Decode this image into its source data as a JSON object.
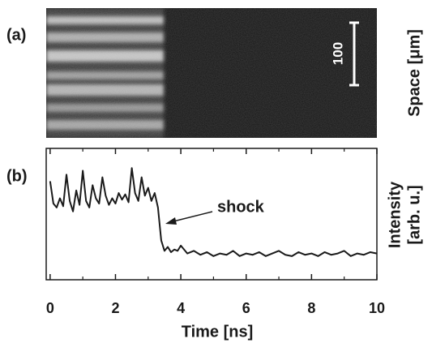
{
  "chart_data": [
    {
      "type": "image",
      "panel_label": "(a)",
      "y_label": "Space [μm]",
      "scale_bar": 100
    },
    {
      "type": "line",
      "panel_label": "(b)",
      "x_label": "Time [ns]",
      "y_label": [
        "Intensity",
        "[arb. u.]"
      ],
      "annotation": "shock",
      "color": "#1a1a1a",
      "xlim": [
        -0.12,
        10
      ],
      "xticks": [
        0,
        2,
        4,
        6,
        8,
        10
      ],
      "ylim": [
        0,
        1
      ],
      "x": [
        0,
        0.1,
        0.2,
        0.3,
        0.4,
        0.5,
        0.6,
        0.7,
        0.8,
        0.9,
        1.0,
        1.1,
        1.2,
        1.3,
        1.4,
        1.5,
        1.6,
        1.7,
        1.8,
        1.9,
        2.0,
        2.1,
        2.2,
        2.3,
        2.4,
        2.5,
        2.6,
        2.7,
        2.8,
        2.9,
        3.0,
        3.1,
        3.2,
        3.3,
        3.4,
        3.5,
        3.6,
        3.7,
        3.8,
        3.9,
        4.0,
        4.2,
        4.4,
        4.6,
        4.8,
        5.0,
        5.2,
        5.4,
        5.6,
        5.8,
        6.0,
        6.2,
        6.4,
        6.6,
        6.8,
        7.0,
        7.2,
        7.4,
        7.6,
        7.8,
        8.0,
        8.2,
        8.4,
        8.6,
        8.8,
        9.0,
        9.2,
        9.4,
        9.6,
        9.8,
        10.0
      ],
      "values": [
        0.75,
        0.58,
        0.55,
        0.62,
        0.56,
        0.8,
        0.6,
        0.52,
        0.68,
        0.57,
        0.83,
        0.6,
        0.55,
        0.72,
        0.62,
        0.58,
        0.78,
        0.64,
        0.57,
        0.62,
        0.58,
        0.66,
        0.61,
        0.65,
        0.59,
        0.85,
        0.66,
        0.6,
        0.78,
        0.64,
        0.7,
        0.6,
        0.66,
        0.55,
        0.3,
        0.22,
        0.25,
        0.21,
        0.23,
        0.22,
        0.26,
        0.2,
        0.22,
        0.19,
        0.21,
        0.18,
        0.2,
        0.19,
        0.22,
        0.18,
        0.2,
        0.19,
        0.21,
        0.18,
        0.2,
        0.22,
        0.19,
        0.18,
        0.21,
        0.19,
        0.2,
        0.18,
        0.21,
        0.19,
        0.2,
        0.22,
        0.18,
        0.2,
        0.19,
        0.21,
        0.2
      ]
    }
  ]
}
